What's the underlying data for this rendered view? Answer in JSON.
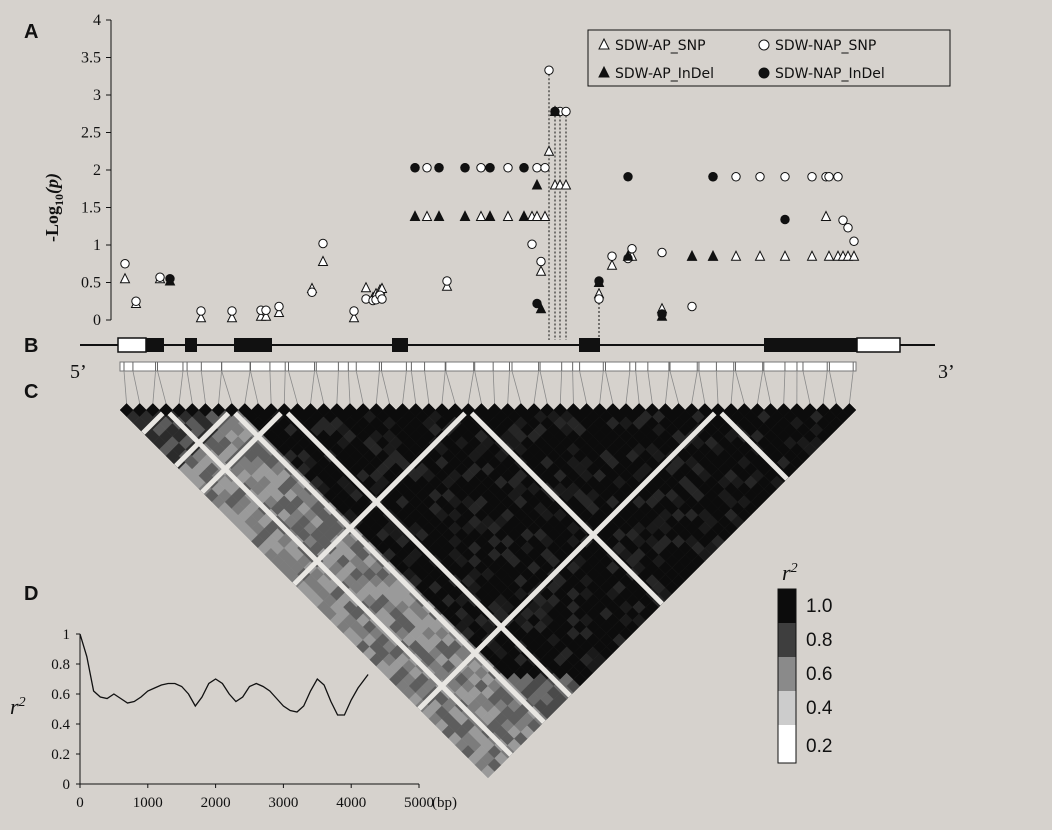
{
  "colors": {
    "background": "#d6d2cd",
    "ink": "#111111",
    "ld_light": "#e8e6e2"
  },
  "panels": {
    "a": "A",
    "b": "B",
    "c": "C",
    "d": "D"
  },
  "chart_data": [
    {
      "panel": "A",
      "type": "scatter",
      "ylabel_prefix": "-Log",
      "ylabel_sub": "10",
      "ylabel_suffix": "(p)",
      "ylim": [
        0,
        4
      ],
      "yticks": [
        "0",
        "0.5",
        "1",
        "1.5",
        "2",
        "2.5",
        "3",
        "3.5",
        "4"
      ],
      "legend_position": "top-right",
      "series": [
        {
          "name": "SDW-AP_SNP",
          "marker": "triangle-open",
          "points": [
            [
              1,
              0.55
            ],
            [
              2,
              0.22
            ],
            [
              3,
              0.55
            ],
            [
              5,
              0.03
            ],
            [
              6,
              0.03
            ],
            [
              7,
              0.05
            ],
            [
              8,
              0.05
            ],
            [
              9,
              0.1
            ],
            [
              10,
              0.42
            ],
            [
              11,
              0.78
            ],
            [
              12,
              0.03
            ],
            [
              13,
              0.43
            ],
            [
              14,
              0.3
            ],
            [
              15,
              0.35
            ],
            [
              16,
              0.4
            ],
            [
              17,
              0.42
            ],
            [
              18,
              0.45
            ],
            [
              19,
              1.38
            ],
            [
              20,
              1.38
            ],
            [
              21,
              1.38
            ],
            [
              22,
              1.38
            ],
            [
              23,
              1.38
            ],
            [
              24,
              1.38
            ],
            [
              25,
              1.38
            ],
            [
              26,
              1.38
            ],
            [
              27,
              1.38
            ],
            [
              28,
              1.38
            ],
            [
              29,
              0.65
            ],
            [
              30,
              1.38
            ],
            [
              31,
              2.25
            ],
            [
              32,
              1.8
            ],
            [
              33,
              1.8
            ],
            [
              34,
              1.8
            ],
            [
              35,
              0.35
            ],
            [
              36,
              0.73
            ],
            [
              37,
              0.85
            ],
            [
              38,
              0.85
            ],
            [
              39,
              0.15
            ],
            [
              40,
              0.85
            ],
            [
              41,
              0.85
            ],
            [
              42,
              0.85
            ],
            [
              43,
              0.85
            ],
            [
              44,
              0.85
            ],
            [
              45,
              0.85
            ],
            [
              46,
              1.38
            ],
            [
              47,
              0.85
            ],
            [
              48,
              0.85
            ],
            [
              49,
              0.85
            ],
            [
              50,
              0.85
            ],
            [
              51,
              0.85
            ]
          ]
        },
        {
          "name": "SDW-NAP_SNP",
          "marker": "circle-open",
          "points": [
            [
              1,
              0.75
            ],
            [
              2,
              0.25
            ],
            [
              3,
              0.57
            ],
            [
              5,
              0.12
            ],
            [
              6,
              0.12
            ],
            [
              7,
              0.13
            ],
            [
              8,
              0.13
            ],
            [
              9,
              0.18
            ],
            [
              10,
              0.37
            ],
            [
              11,
              1.02
            ],
            [
              12,
              0.12
            ],
            [
              13,
              0.28
            ],
            [
              14,
              0.26
            ],
            [
              15,
              0.27
            ],
            [
              16,
              0.33
            ],
            [
              17,
              0.28
            ],
            [
              18,
              0.52
            ],
            [
              19,
              2.03
            ],
            [
              20,
              2.03
            ],
            [
              21,
              2.03
            ],
            [
              22,
              2.03
            ],
            [
              23,
              2.03
            ],
            [
              24,
              2.03
            ],
            [
              25,
              2.03
            ],
            [
              26,
              2.03
            ],
            [
              27,
              1.01
            ],
            [
              28,
              2.03
            ],
            [
              29,
              0.78
            ],
            [
              30,
              2.03
            ],
            [
              31,
              3.33
            ],
            [
              32,
              2.78
            ],
            [
              33,
              2.78
            ],
            [
              34,
              2.78
            ],
            [
              35,
              0.28
            ],
            [
              36,
              0.85
            ],
            [
              37,
              0.82
            ],
            [
              38,
              0.95
            ],
            [
              39,
              0.9
            ],
            [
              40,
              0.18
            ],
            [
              41,
              1.91
            ],
            [
              42,
              1.91
            ],
            [
              43,
              1.91
            ],
            [
              44,
              1.91
            ],
            [
              45,
              1.91
            ],
            [
              46,
              1.91
            ],
            [
              47,
              1.91
            ],
            [
              48,
              1.91
            ],
            [
              49,
              1.33
            ],
            [
              50,
              1.23
            ],
            [
              51,
              1.05
            ]
          ]
        },
        {
          "name": "SDW-AP_InDel",
          "marker": "triangle-filled",
          "points": [
            [
              4,
              0.52
            ],
            [
              19,
              1.38
            ],
            [
              21,
              1.38
            ],
            [
              22,
              1.38
            ],
            [
              24,
              1.38
            ],
            [
              26,
              1.38
            ],
            [
              28,
              1.8
            ],
            [
              29,
              0.15
            ],
            [
              32,
              2.78
            ],
            [
              35,
              0.5
            ],
            [
              37,
              0.85
            ],
            [
              39,
              0.05
            ],
            [
              40,
              0.85
            ],
            [
              41,
              0.85
            ]
          ]
        },
        {
          "name": "SDW-NAP_InDel",
          "marker": "circle-filled",
          "points": [
            [
              4,
              0.55
            ],
            [
              19,
              2.03
            ],
            [
              21,
              2.03
            ],
            [
              22,
              2.03
            ],
            [
              24,
              2.03
            ],
            [
              26,
              2.03
            ],
            [
              28,
              0.22
            ],
            [
              32,
              2.78
            ],
            [
              35,
              0.52
            ],
            [
              37,
              1.91
            ],
            [
              39,
              0.08
            ],
            [
              41,
              1.91
            ],
            [
              44,
              1.34
            ]
          ]
        }
      ]
    },
    {
      "panel": "B",
      "type": "other",
      "five_prime": "5’",
      "three_prime": "3’"
    },
    {
      "panel": "C",
      "type": "heatmap",
      "scale_title": "r",
      "scale_title_sup": "2",
      "scale_levels": [
        1.0,
        0.8,
        0.6,
        0.4,
        0.2
      ],
      "scale_labels": [
        "1.0",
        "0.8",
        "0.6",
        "0.4",
        "0.2"
      ],
      "scale_colors": [
        "#0c0c0c",
        "#3e3e3e",
        "#8a8a8a",
        "#cccccc",
        "#ffffff"
      ]
    },
    {
      "panel": "D",
      "type": "line",
      "ylabel": "r",
      "ylabel_sup": "2",
      "xlabel": "(bp)",
      "xlim": [
        0,
        5000
      ],
      "ylim": [
        0,
        1
      ],
      "xticks": [
        "0",
        "1000",
        "2000",
        "3000",
        "4000",
        "5000"
      ],
      "yticks": [
        "0",
        "0.2",
        "0.4",
        "0.6",
        "0.8",
        "1"
      ],
      "x": [
        0,
        100,
        200,
        300,
        400,
        500,
        600,
        700,
        800,
        900,
        1000,
        1100,
        1200,
        1300,
        1400,
        1500,
        1600,
        1700,
        1800,
        1900,
        2000,
        2100,
        2200,
        2300,
        2400,
        2500,
        2600,
        2700,
        2800,
        2900,
        3000,
        3100,
        3200,
        3300,
        3400,
        3500,
        3600,
        3700,
        3800,
        3900,
        4000,
        4100,
        4250
      ],
      "y": [
        1.0,
        0.85,
        0.62,
        0.58,
        0.57,
        0.6,
        0.57,
        0.54,
        0.55,
        0.58,
        0.62,
        0.64,
        0.66,
        0.67,
        0.67,
        0.65,
        0.6,
        0.52,
        0.58,
        0.67,
        0.7,
        0.67,
        0.6,
        0.55,
        0.58,
        0.65,
        0.67,
        0.65,
        0.62,
        0.57,
        0.52,
        0.49,
        0.48,
        0.52,
        0.62,
        0.7,
        0.66,
        0.55,
        0.46,
        0.46,
        0.56,
        0.64,
        0.73
      ]
    }
  ]
}
